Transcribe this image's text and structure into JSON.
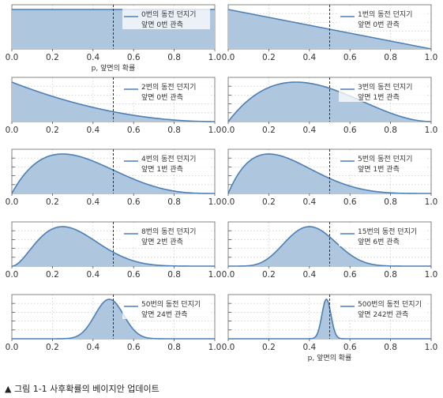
{
  "caption": "▲ 그림 1-1 사후확률의 베이지안 업데이트",
  "colors": {
    "fill": "#aec6de",
    "line": "#4c7fb5",
    "grid": "#cccccc",
    "marker": "#333333"
  },
  "chart_data": [
    {
      "type": "area",
      "distribution": "beta",
      "alpha": 1,
      "beta": 1,
      "annotation": [
        "0번의 동전 던지기",
        "앞면 0번 관측"
      ],
      "xlabel": "p, 앞면의 확률",
      "xlim": [
        0,
        1
      ],
      "xticks": [
        "0.0",
        "0.2",
        "0.4",
        "0.6",
        "0.8",
        "1.0"
      ],
      "marker_x": 0.5
    },
    {
      "type": "area",
      "distribution": "beta",
      "alpha": 1,
      "beta": 2,
      "annotation": [
        "1번의 동전 던지기",
        "앞면 0번 관측"
      ],
      "xlabel": "",
      "xlim": [
        0,
        1
      ],
      "xticks": [
        "0.0",
        "0.2",
        "0.4",
        "0.6",
        "0.8",
        "1.0"
      ],
      "marker_x": 0.5
    },
    {
      "type": "area",
      "distribution": "beta",
      "alpha": 1,
      "beta": 3,
      "annotation": [
        "2번의 동전 던지기",
        "앞면 0번 관측"
      ],
      "xlabel": "",
      "xlim": [
        0,
        1
      ],
      "xticks": [
        "0.0",
        "0.2",
        "0.4",
        "0.6",
        "0.8",
        "1.0"
      ],
      "marker_x": 0.5
    },
    {
      "type": "area",
      "distribution": "beta",
      "alpha": 2,
      "beta": 3,
      "annotation": [
        "3번의 동전 던지기",
        "앞면 1번 관측"
      ],
      "xlabel": "",
      "xlim": [
        0,
        1
      ],
      "xticks": [
        "0.0",
        "0.2",
        "0.4",
        "0.6",
        "0.8",
        "1.0"
      ],
      "marker_x": 0.5
    },
    {
      "type": "area",
      "distribution": "beta",
      "alpha": 2,
      "beta": 4,
      "annotation": [
        "4번의 동전 던지기",
        "앞면 1번 관측"
      ],
      "xlabel": "",
      "xlim": [
        0,
        1
      ],
      "xticks": [
        "0.0",
        "0.2",
        "0.4",
        "0.6",
        "0.8",
        "1.0"
      ],
      "marker_x": 0.5
    },
    {
      "type": "area",
      "distribution": "beta",
      "alpha": 2,
      "beta": 5,
      "annotation": [
        "5번의 동전 던지기",
        "앞면 1번 관측"
      ],
      "xlabel": "",
      "xlim": [
        0,
        1
      ],
      "xticks": [
        "0.0",
        "0.2",
        "0.4",
        "0.6",
        "0.8",
        "1.0"
      ],
      "marker_x": 0.5
    },
    {
      "type": "area",
      "distribution": "beta",
      "alpha": 3,
      "beta": 7,
      "annotation": [
        "8번의 동전 던지기",
        "앞면 2번 관측"
      ],
      "xlabel": "",
      "xlim": [
        0,
        1
      ],
      "xticks": [
        "0.0",
        "0.2",
        "0.4",
        "0.6",
        "0.8",
        "1.0"
      ],
      "marker_x": 0.5
    },
    {
      "type": "area",
      "distribution": "beta",
      "alpha": 7,
      "beta": 10,
      "annotation": [
        "15번의 동전 던지기",
        "앞면 6번 관측"
      ],
      "xlabel": "",
      "xlim": [
        0,
        1
      ],
      "xticks": [
        "0.0",
        "0.2",
        "0.4",
        "0.6",
        "0.8",
        "1.0"
      ],
      "marker_x": 0.5
    },
    {
      "type": "area",
      "distribution": "beta",
      "alpha": 25,
      "beta": 27,
      "annotation": [
        "50번의 동전 던지기",
        "앞면 24번 관측"
      ],
      "xlabel": "",
      "xlim": [
        0,
        1
      ],
      "xticks": [
        "0.0",
        "0.2",
        "0.4",
        "0.6",
        "0.8",
        "1.0"
      ],
      "marker_x": 0.5
    },
    {
      "type": "area",
      "distribution": "beta",
      "alpha": 243,
      "beta": 259,
      "annotation": [
        "500번의 동전 던지기",
        "앞면 242번 관측"
      ],
      "xlabel": "p, 앞면의 확률",
      "xlim": [
        0,
        1
      ],
      "xticks": [
        "0.0",
        "0.2",
        "0.4",
        "0.6",
        "0.8",
        "1.0"
      ],
      "marker_x": 0.5
    }
  ]
}
